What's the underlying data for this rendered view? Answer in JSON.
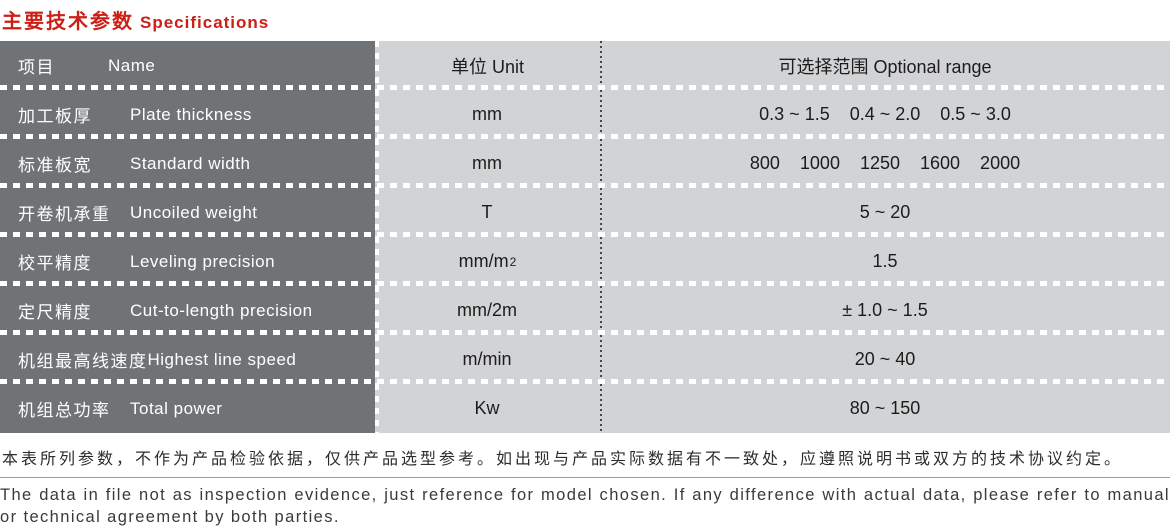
{
  "title": {
    "zh": "主要技术参数",
    "en": "Specifications"
  },
  "table": {
    "header": {
      "name_zh": "项目",
      "name_en": "Name",
      "unit": "单位 Unit",
      "range": "可选择范围 Optional range"
    },
    "rows": [
      {
        "zh": "加工板厚",
        "en": "Plate thickness",
        "unit": "mm",
        "range": "0.3 ~ 1.5    0.4 ~ 2.0    0.5 ~ 3.0"
      },
      {
        "zh": "标准板宽",
        "en": "Standard width",
        "unit": "mm",
        "range": "800    1000    1250    1600    2000"
      },
      {
        "zh": "开卷机承重",
        "en": "Uncoiled weight",
        "unit": "T",
        "range": "5 ~ 20"
      },
      {
        "zh": "校平精度",
        "en": "Leveling precision",
        "unit": "mm/m",
        "unit_sup": "2",
        "range": "1.5"
      },
      {
        "zh": "定尺精度",
        "en": "Cut-to-length precision",
        "unit": "mm/2m",
        "range": "± 1.0 ~ 1.5"
      },
      {
        "zh": "机组最高线速度",
        "en": "Highest line speed",
        "unit": "m/min",
        "range": "20 ~ 40"
      },
      {
        "zh": "机组总功率",
        "en": "Total power",
        "unit": "Kw",
        "range": "80 ~ 150"
      }
    ]
  },
  "footer": {
    "zh": "本表所列参数，不作为产品检验依据，仅供产品选型参考。如出现与产品实际数据有不一致处，应遵照说明书或双方的技术协议约定。",
    "en": "The data in file not as inspection evidence, just reference for model chosen. If any difference with actual data, please refer to manual or technical agreement by both parties."
  },
  "colors": {
    "accent_red": "#cc2017",
    "dark_cell": "#6f7376",
    "light_cell": "#d2d3d5"
  }
}
